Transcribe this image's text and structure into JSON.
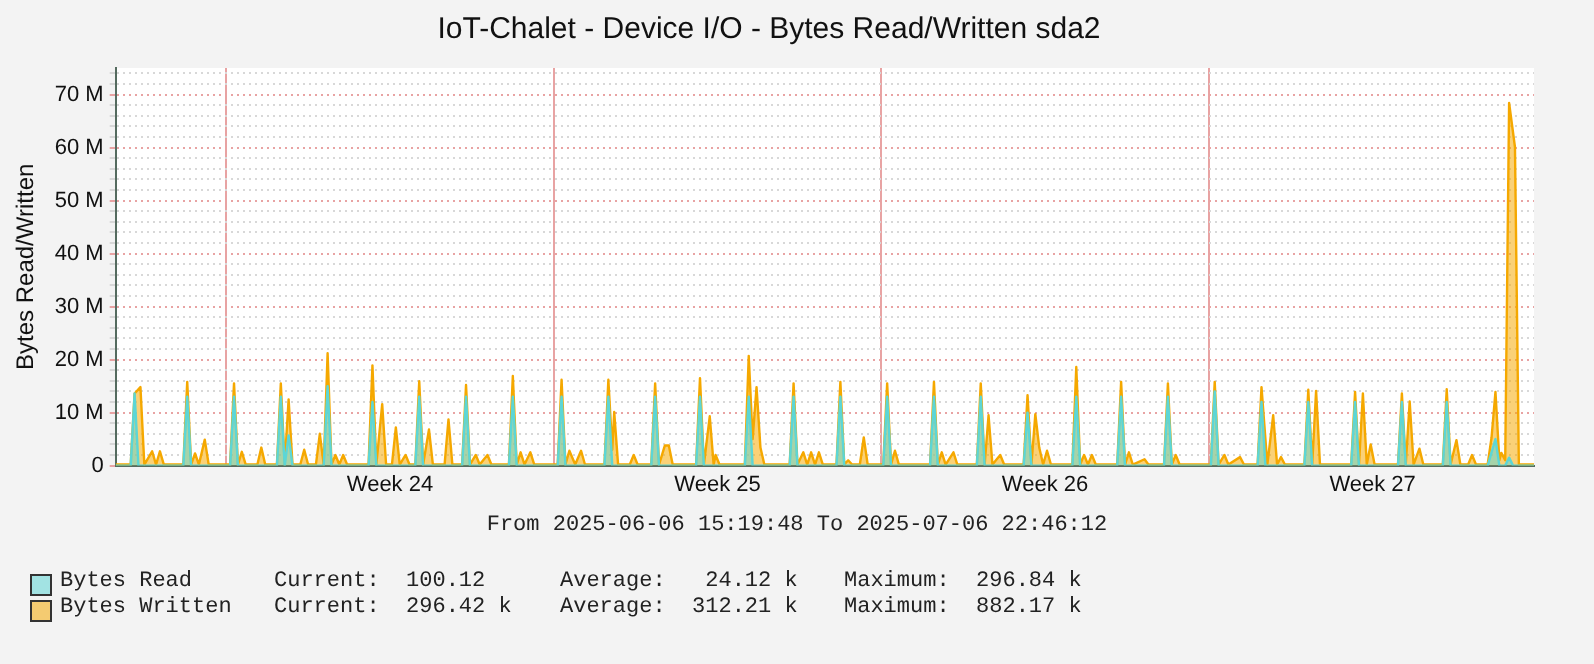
{
  "chart_data": {
    "type": "area",
    "title": "IoT-Chalet - Device I/O - Bytes Read/Written sda2",
    "ylabel": "Bytes Read/Written",
    "legend": "bottom",
    "grid": true,
    "marker": "none",
    "xlim": [
      "2025-06-06T15:19",
      "2025-07-06T22:46"
    ],
    "xticks": [
      {
        "value": "2025-06-09",
        "label": null
      },
      {
        "value": "2025-06-12T12:00",
        "label": "Week 24"
      },
      {
        "value": "2025-06-16",
        "label": null
      },
      {
        "value": "2025-06-19T12:00",
        "label": "Week 25"
      },
      {
        "value": "2025-06-23",
        "label": null
      },
      {
        "value": "2025-06-26T12:00",
        "label": "Week 26"
      },
      {
        "value": "2025-06-30",
        "label": null
      },
      {
        "value": "2025-07-03T12:00",
        "label": "Week 27"
      }
    ],
    "ylim": [
      0,
      75000000
    ],
    "yticks": [
      {
        "value": 0,
        "label": "0"
      },
      {
        "value": 2000000,
        "label": null
      },
      {
        "value": 4000000,
        "label": null
      },
      {
        "value": 6000000,
        "label": null
      },
      {
        "value": 8000000,
        "label": null
      },
      {
        "value": 10000000,
        "label": "10 M"
      },
      {
        "value": 12000000,
        "label": null
      },
      {
        "value": 14000000,
        "label": null
      },
      {
        "value": 16000000,
        "label": null
      },
      {
        "value": 18000000,
        "label": null
      },
      {
        "value": 20000000,
        "label": "20 M"
      },
      {
        "value": 22000000,
        "label": null
      },
      {
        "value": 24000000,
        "label": null
      },
      {
        "value": 26000000,
        "label": null
      },
      {
        "value": 28000000,
        "label": null
      },
      {
        "value": 30000000,
        "label": "30 M"
      },
      {
        "value": 32000000,
        "label": null
      },
      {
        "value": 34000000,
        "label": null
      },
      {
        "value": 36000000,
        "label": null
      },
      {
        "value": 38000000,
        "label": null
      },
      {
        "value": 40000000,
        "label": "40 M"
      },
      {
        "value": 42000000,
        "label": null
      },
      {
        "value": 44000000,
        "label": null
      },
      {
        "value": 46000000,
        "label": null
      },
      {
        "value": 48000000,
        "label": null
      },
      {
        "value": 50000000,
        "label": "50 M"
      },
      {
        "value": 52000000,
        "label": null
      },
      {
        "value": 54000000,
        "label": null
      },
      {
        "value": 56000000,
        "label": null
      },
      {
        "value": 58000000,
        "label": null
      },
      {
        "value": 60000000,
        "label": "60 M"
      },
      {
        "value": 62000000,
        "label": null
      },
      {
        "value": 64000000,
        "label": null
      },
      {
        "value": 66000000,
        "label": null
      },
      {
        "value": 68000000,
        "label": null
      },
      {
        "value": 70000000,
        "label": "70 M"
      },
      {
        "value": 72000000,
        "label": null
      },
      {
        "value": 74000000,
        "label": null
      }
    ],
    "annotations": [
      "From 2025-06-06 15:19:48 To 2025-07-06 22:46:12",
      "Current:  100.12",
      "Average:   24.12 k",
      "Maximum:  296.84 k",
      "Current:  296.42 k",
      "Average:  312.21 k",
      "Maximum:  882.17 k"
    ],
    "series": [
      {
        "name": "Bytes Read",
        "color": "#5cd6d6",
        "x": [
          "2025-06-06T15:19",
          "2025-06-06T23:00",
          "2025-06-07T01:00",
          "2025-06-07T03:00",
          "2025-06-08T02:00",
          "2025-06-08T04:00",
          "2025-06-08T06:00",
          "2025-06-09T02:00",
          "2025-06-09T04:00",
          "2025-06-09T06:00",
          "2025-06-10T02:00",
          "2025-06-10T04:00",
          "2025-06-10T06:00",
          "2025-06-10T08:00",
          "2025-06-10T10:00",
          "2025-06-11T02:00",
          "2025-06-11T04:00",
          "2025-06-11T06:00",
          "2025-06-12T01:00",
          "2025-06-12T03:00",
          "2025-06-12T05:00",
          "2025-06-13T01:00",
          "2025-06-13T03:00",
          "2025-06-13T05:00",
          "2025-06-14T01:00",
          "2025-06-14T03:00",
          "2025-06-14T05:00",
          "2025-06-15T01:00",
          "2025-06-15T03:00",
          "2025-06-15T05:00",
          "2025-06-16T02:00",
          "2025-06-16T04:00",
          "2025-06-16T06:00",
          "2025-06-17T02:00",
          "2025-06-17T04:00",
          "2025-06-17T06:00",
          "2025-06-18T02:00",
          "2025-06-18T04:00",
          "2025-06-18T06:00",
          "2025-06-19T01:00",
          "2025-06-19T03:00",
          "2025-06-19T05:00",
          "2025-06-20T02:00",
          "2025-06-20T04:00",
          "2025-06-20T06:00",
          "2025-06-21T01:00",
          "2025-06-21T03:00",
          "2025-06-21T05:00",
          "2025-06-22T01:00",
          "2025-06-22T03:00",
          "2025-06-22T05:00",
          "2025-06-23T01:00",
          "2025-06-23T03:00",
          "2025-06-23T05:00",
          "2025-06-24T01:00",
          "2025-06-24T03:00",
          "2025-06-24T05:00",
          "2025-06-25T01:00",
          "2025-06-25T03:00",
          "2025-06-25T05:00",
          "2025-06-26T01:00",
          "2025-06-26T03:00",
          "2025-06-26T05:00",
          "2025-06-27T02:00",
          "2025-06-27T04:00",
          "2025-06-27T06:00",
          "2025-06-28T01:00",
          "2025-06-28T03:00",
          "2025-06-28T05:00",
          "2025-06-29T01:00",
          "2025-06-29T03:00",
          "2025-06-29T05:00",
          "2025-06-30T01:00",
          "2025-06-30T03:00",
          "2025-06-30T05:00",
          "2025-07-01T01:00",
          "2025-07-01T03:00",
          "2025-07-01T05:00",
          "2025-07-02T01:00",
          "2025-07-02T03:00",
          "2025-07-02T05:00",
          "2025-07-03T01:00",
          "2025-07-03T03:00",
          "2025-07-03T05:00",
          "2025-07-04T01:00",
          "2025-07-04T03:00",
          "2025-07-04T05:00",
          "2025-07-05T00:00",
          "2025-07-05T02:00",
          "2025-07-05T04:00",
          "2025-07-05T23:00",
          "2025-07-06T03:00",
          "2025-07-06T05:00",
          "2025-07-06T08:00",
          "2025-07-06T10:00",
          "2025-07-06T12:00",
          "2025-07-06T22:46"
        ],
        "values": [
          0,
          0,
          13600000,
          0,
          0,
          13000000,
          0,
          0,
          13000000,
          0,
          0,
          13000000,
          0,
          5700000,
          0,
          0,
          15000000,
          0,
          0,
          12000000,
          0,
          0,
          13000000,
          0,
          0,
          13000000,
          0,
          0,
          13000000,
          0,
          0,
          13000000,
          0,
          0,
          13000000,
          0,
          0,
          13000000,
          0,
          0,
          13000000,
          0,
          0,
          13000000,
          0,
          0,
          13000000,
          0,
          0,
          13000000,
          0,
          0,
          13000000,
          0,
          0,
          13000000,
          0,
          0,
          13000000,
          0,
          0,
          10000000,
          0,
          0,
          13000000,
          0,
          0,
          13000000,
          0,
          0,
          13000000,
          0,
          0,
          14000000,
          0,
          0,
          12000000,
          0,
          0,
          12000000,
          0,
          0,
          12000000,
          0,
          0,
          12000000,
          0,
          0,
          12000000,
          0,
          0,
          5000000,
          0,
          0,
          1500000,
          0,
          0
        ]
      },
      {
        "name": "Bytes Written",
        "color": "#f5a800",
        "x": [
          "2025-06-06T15:19",
          "2025-06-06T23:00",
          "2025-06-07T01:00",
          "2025-06-07T04:00",
          "2025-06-07T06:00",
          "2025-06-07T10:00",
          "2025-06-07T12:00",
          "2025-06-07T14:00",
          "2025-06-07T16:00",
          "2025-06-08T02:00",
          "2025-06-08T04:00",
          "2025-06-08T06:00",
          "2025-06-08T08:00",
          "2025-06-08T10:00",
          "2025-06-08T13:00",
          "2025-06-08T15:00",
          "2025-06-09T02:00",
          "2025-06-09T04:00",
          "2025-06-09T06:00",
          "2025-06-09T08:00",
          "2025-06-09T10:00",
          "2025-06-09T16:00",
          "2025-06-09T18:00",
          "2025-06-09T20:00",
          "2025-06-10T02:00",
          "2025-06-10T04:00",
          "2025-06-10T06:00",
          "2025-06-10T08:00",
          "2025-06-10T10:00",
          "2025-06-10T14:00",
          "2025-06-10T16:00",
          "2025-06-10T18:00",
          "2025-06-10T22:00",
          "2025-06-11T00:00",
          "2025-06-11T02:00",
          "2025-06-11T04:00",
          "2025-06-11T06:00",
          "2025-06-11T08:00",
          "2025-06-11T10:00",
          "2025-06-11T12:00",
          "2025-06-11T14:00",
          "2025-06-12T01:00",
          "2025-06-12T03:00",
          "2025-06-12T05:00",
          "2025-06-12T08:00",
          "2025-06-12T10:00",
          "2025-06-12T13:00",
          "2025-06-12T15:00",
          "2025-06-12T17:00",
          "2025-06-12T20:00",
          "2025-06-12T22:00",
          "2025-06-13T01:00",
          "2025-06-13T03:00",
          "2025-06-13T05:00",
          "2025-06-13T08:00",
          "2025-06-13T10:00",
          "2025-06-13T16:00",
          "2025-06-13T18:00",
          "2025-06-13T20:00",
          "2025-06-14T01:00",
          "2025-06-14T03:00",
          "2025-06-14T05:00",
          "2025-06-14T08:00",
          "2025-06-14T10:00",
          "2025-06-14T14:00",
          "2025-06-14T16:00",
          "2025-06-15T01:00",
          "2025-06-15T03:00",
          "2025-06-15T05:00",
          "2025-06-15T07:00",
          "2025-06-15T09:00",
          "2025-06-15T12:00",
          "2025-06-15T14:00",
          "2025-06-16T02:00",
          "2025-06-16T04:00",
          "2025-06-16T06:00",
          "2025-06-16T08:00",
          "2025-06-16T11:00",
          "2025-06-16T14:00",
          "2025-06-16T16:00",
          "2025-06-17T02:00",
          "2025-06-17T04:00",
          "2025-06-17T06:00",
          "2025-06-17T07:00",
          "2025-06-17T09:00",
          "2025-06-17T15:00",
          "2025-06-17T17:00",
          "2025-06-17T19:00",
          "2025-06-18T02:00",
          "2025-06-18T04:00",
          "2025-06-18T06:00",
          "2025-06-18T09:00",
          "2025-06-18T11:00",
          "2025-06-18T13:00",
          "2025-06-19T01:00",
          "2025-06-19T03:00",
          "2025-06-19T05:00",
          "2025-06-19T08:00",
          "2025-06-19T10:00",
          "2025-06-19T11:00",
          "2025-06-19T13:00",
          "2025-06-20T02:00",
          "2025-06-20T04:00",
          "2025-06-20T06:00",
          "2025-06-20T08:00",
          "2025-06-20T10:00",
          "2025-06-20T12:00",
          "2025-06-21T01:00",
          "2025-06-21T03:00",
          "2025-06-21T05:00",
          "2025-06-21T08:00",
          "2025-06-21T10:00",
          "2025-06-21T12:00",
          "2025-06-21T14:00",
          "2025-06-21T16:00",
          "2025-06-21T18:00",
          "2025-06-22T01:00",
          "2025-06-22T03:00",
          "2025-06-22T05:00",
          "2025-06-22T07:00",
          "2025-06-22T09:00",
          "2025-06-22T13:00",
          "2025-06-22T15:00",
          "2025-06-22T17:00",
          "2025-06-23T01:00",
          "2025-06-23T03:00",
          "2025-06-23T05:00",
          "2025-06-23T07:00",
          "2025-06-23T09:00",
          "2025-06-24T01:00",
          "2025-06-24T03:00",
          "2025-06-24T05:00",
          "2025-06-24T07:00",
          "2025-06-24T09:00",
          "2025-06-24T13:00",
          "2025-06-24T15:00",
          "2025-06-25T01:00",
          "2025-06-25T03:00",
          "2025-06-25T05:00",
          "2025-06-25T07:00",
          "2025-06-25T09:00",
          "2025-06-25T13:00",
          "2025-06-25T15:00",
          "2025-06-26T01:00",
          "2025-06-26T03:00",
          "2025-06-26T05:00",
          "2025-06-26T07:00",
          "2025-06-26T09:00",
          "2025-06-26T11:00",
          "2025-06-26T13:00",
          "2025-06-26T15:00",
          "2025-06-27T02:00",
          "2025-06-27T04:00",
          "2025-06-27T06:00",
          "2025-06-27T08:00",
          "2025-06-27T10:00",
          "2025-06-27T12:00",
          "2025-06-27T14:00",
          "2025-06-28T01:00",
          "2025-06-28T03:00",
          "2025-06-28T05:00",
          "2025-06-28T07:00",
          "2025-06-28T09:00",
          "2025-06-28T15:00",
          "2025-06-28T17:00",
          "2025-06-29T01:00",
          "2025-06-29T03:00",
          "2025-06-29T05:00",
          "2025-06-29T07:00",
          "2025-06-29T09:00",
          "2025-06-30T01:00",
          "2025-06-30T03:00",
          "2025-06-30T05:00",
          "2025-06-30T08:00",
          "2025-06-30T10:00",
          "2025-06-30T16:00",
          "2025-06-30T18:00",
          "2025-07-01T01:00",
          "2025-07-01T03:00",
          "2025-07-01T06:00",
          "2025-07-01T09:00",
          "2025-07-01T11:00",
          "2025-07-01T13:00",
          "2025-07-01T15:00",
          "2025-07-02T01:00",
          "2025-07-02T03:00",
          "2025-07-02T05:00",
          "2025-07-02T07:00",
          "2025-07-02T09:00",
          "2025-07-03T01:00",
          "2025-07-03T03:00",
          "2025-07-03T05:00",
          "2025-07-03T07:00",
          "2025-07-03T09:00",
          "2025-07-03T11:00",
          "2025-07-03T13:00",
          "2025-07-04T01:00",
          "2025-07-04T03:00",
          "2025-07-04T05:00",
          "2025-07-04T07:00",
          "2025-07-04T09:00",
          "2025-07-04T12:00",
          "2025-07-04T14:00",
          "2025-07-05T00:00",
          "2025-07-05T02:00",
          "2025-07-05T04:00",
          "2025-07-05T07:00",
          "2025-07-05T09:00",
          "2025-07-05T13:00",
          "2025-07-05T15:00",
          "2025-07-05T17:00",
          "2025-07-05T23:00",
          "2025-07-06T01:00",
          "2025-07-06T03:00",
          "2025-07-06T05:00",
          "2025-07-06T06:00",
          "2025-07-06T08:00",
          "2025-07-06T10:00",
          "2025-07-06T13:00",
          "2025-07-06T15:00",
          "2025-07-06T22:46"
        ],
        "values": [
          200000,
          200000,
          13600000,
          14800000,
          200000,
          2700000,
          200000,
          2700000,
          200000,
          200000,
          15800000,
          200000,
          2300000,
          200000,
          4900000,
          200000,
          200000,
          15500000,
          200000,
          2600000,
          200000,
          200000,
          3400000,
          200000,
          200000,
          15500000,
          200000,
          12500000,
          200000,
          200000,
          3000000,
          200000,
          200000,
          6000000,
          200000,
          21200000,
          200000,
          2000000,
          200000,
          2000000,
          200000,
          200000,
          18900000,
          200000,
          11600000,
          200000,
          200000,
          7200000,
          200000,
          2000000,
          200000,
          200000,
          15900000,
          200000,
          6800000,
          200000,
          200000,
          8700000,
          200000,
          200000,
          15200000,
          200000,
          2000000,
          200000,
          2000000,
          200000,
          200000,
          16900000,
          200000,
          2500000,
          200000,
          2500000,
          200000,
          200000,
          16200000,
          200000,
          2800000,
          200000,
          2800000,
          200000,
          200000,
          16200000,
          3000000,
          10100000,
          200000,
          200000,
          2000000,
          200000,
          200000,
          15500000,
          200000,
          3800000,
          3800000,
          200000,
          200000,
          16500000,
          200000,
          9300000,
          200000,
          2000000,
          200000,
          200000,
          20700000,
          5000000,
          14800000,
          3400000,
          200000,
          200000,
          15500000,
          200000,
          2500000,
          200000,
          2500000,
          200000,
          2500000,
          200000,
          200000,
          15800000,
          200000,
          1000000,
          200000,
          200000,
          5300000,
          200000,
          200000,
          15500000,
          200000,
          2800000,
          200000,
          200000,
          15800000,
          200000,
          2500000,
          200000,
          2500000,
          200000,
          200000,
          15500000,
          200000,
          9500000,
          200000,
          2000000,
          200000,
          200000,
          13300000,
          200000,
          9700000,
          3400000,
          200000,
          2800000,
          200000,
          200000,
          18600000,
          200000,
          2000000,
          200000,
          2000000,
          200000,
          200000,
          15800000,
          200000,
          2500000,
          200000,
          1200000,
          200000,
          200000,
          15500000,
          200000,
          2000000,
          200000,
          200000,
          15800000,
          200000,
          2000000,
          200000,
          1600000,
          200000,
          200000,
          14800000,
          200000,
          9500000,
          200000,
          1600000,
          200000,
          200000,
          14300000,
          200000,
          14100000,
          200000,
          200000,
          13900000,
          200000,
          13600000,
          200000,
          4000000,
          200000,
          200000,
          13600000,
          200000,
          12100000,
          200000,
          3200000,
          200000,
          200000,
          14400000,
          200000,
          4800000,
          200000,
          200000,
          2000000,
          200000,
          200000,
          5300000,
          13900000,
          1000000,
          2400000,
          1000000,
          68400000,
          60100000,
          200000,
          200000
        ]
      }
    ]
  }
}
